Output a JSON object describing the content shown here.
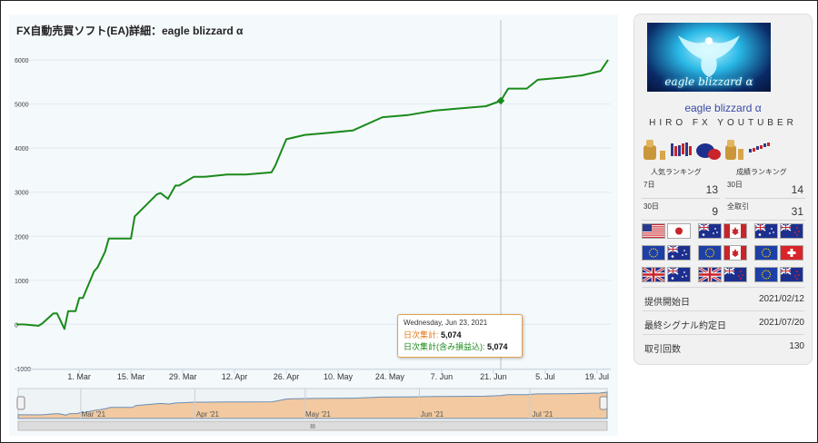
{
  "chart": {
    "title": "FX自動売買ソフト(EA)詳細：eagle blizzard α",
    "y_ticks": [
      "6000",
      "5000",
      "4000",
      "3000",
      "2000",
      "1000",
      "0",
      "-1000"
    ],
    "x_ticks": [
      "1. Mar",
      "15. Mar",
      "29. Mar",
      "12. Apr",
      "26. Apr",
      "10. May",
      "24. May",
      "7. Jun",
      "21. Jun",
      "5. Jul",
      "19. Jul"
    ],
    "nav_labels": [
      "Mar '21",
      "Apr '21",
      "May '21",
      "Jun '21",
      "Jul '21"
    ],
    "nav_handle": "III",
    "line_color": "#1a8a1a",
    "tooltip": {
      "date": "Wednesday, Jun 23, 2021",
      "daily_label": "日次集計:",
      "daily_value": "5,074",
      "daily_incl_label": "日次集計(含み損益込):",
      "daily_incl_value": "5,074"
    }
  },
  "chart_data": {
    "type": "line",
    "ylim": [
      -1000,
      6000
    ],
    "series": [
      {
        "color": "#1a8a1a",
        "x": [
          "2021-02-12",
          "2021-02-14",
          "2021-02-18",
          "2021-02-19",
          "2021-02-22",
          "2021-02-23",
          "2021-02-25",
          "2021-02-26",
          "2021-02-28",
          "2021-03-01",
          "2021-03-02",
          "2021-03-05",
          "2021-03-06",
          "2021-03-08",
          "2021-03-09",
          "2021-03-12",
          "2021-03-15",
          "2021-03-16",
          "2021-03-22",
          "2021-03-23",
          "2021-03-25",
          "2021-03-26",
          "2021-03-27",
          "2021-03-28",
          "2021-04-01",
          "2021-04-04",
          "2021-04-10",
          "2021-04-15",
          "2021-04-22",
          "2021-04-23",
          "2021-04-26",
          "2021-05-01",
          "2021-05-08",
          "2021-05-14",
          "2021-05-22",
          "2021-05-29",
          "2021-06-05",
          "2021-06-12",
          "2021-06-19",
          "2021-06-23",
          "2021-06-25",
          "2021-06-30",
          "2021-07-03",
          "2021-07-10",
          "2021-07-15",
          "2021-07-20",
          "2021-07-22"
        ],
        "values": [
          0,
          0,
          -30,
          20,
          250,
          250,
          -100,
          300,
          300,
          600,
          600,
          1200,
          1300,
          1650,
          1950,
          1950,
          1950,
          2450,
          2950,
          2980,
          2850,
          3000,
          3150,
          3150,
          3350,
          3350,
          3400,
          3400,
          3450,
          3600,
          4200,
          4300,
          4350,
          4400,
          4700,
          4750,
          4850,
          4900,
          4950,
          5074,
          5350,
          5350,
          5550,
          5600,
          5650,
          5750,
          6000
        ]
      }
    ]
  },
  "sidebar": {
    "banner_text": "eagle blizzard α",
    "ea_name": "eagle blizzard α",
    "developer": "HIRO FX YOUTUBER",
    "popularity_label": "人気ランキング",
    "performance_label": "成績ランキング",
    "popularity": [
      {
        "period": "7日",
        "rank": "13"
      },
      {
        "period": "30日",
        "rank": "9"
      }
    ],
    "performance": [
      {
        "period": "30日",
        "rank": "14"
      },
      {
        "period": "全取引",
        "rank": "31"
      }
    ],
    "currency_pairs": [
      {
        "name": "usd-jpy",
        "base": "us",
        "quote": "jp"
      },
      {
        "name": "aud-cad",
        "base": "au",
        "quote": "ca"
      },
      {
        "name": "aud-nzd",
        "base": "au",
        "quote": "nz"
      },
      {
        "name": "eur-aud",
        "base": "eu",
        "quote": "au"
      },
      {
        "name": "eur-cad",
        "base": "eu",
        "quote": "ca"
      },
      {
        "name": "eur-chf",
        "base": "eu",
        "quote": "ch"
      },
      {
        "name": "gbp-aud",
        "base": "gb",
        "quote": "au"
      },
      {
        "name": "gbp-nzd",
        "base": "gb",
        "quote": "nz"
      },
      {
        "name": "eur-nzd",
        "base": "eu",
        "quote": "nz"
      }
    ],
    "info": [
      {
        "label": "提供開始日",
        "value": "2021/02/12"
      },
      {
        "label": "最終シグナル約定日",
        "value": "2021/07/20"
      },
      {
        "label": "取引回数",
        "value": "130"
      }
    ]
  }
}
